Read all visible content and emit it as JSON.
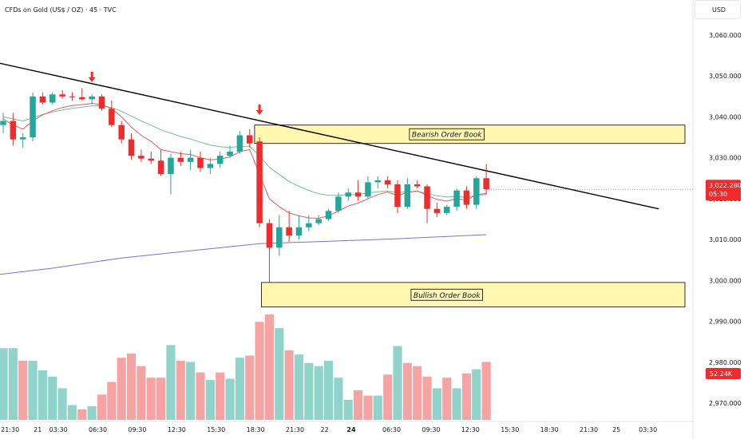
{
  "header": {
    "symbol_line": "CFDs on Gold (US$ / OZ) · 45 · TVC",
    "currency": "USD"
  },
  "colors": {
    "bull": "#26a69a",
    "bear": "#ef2b2b",
    "bull_volume": "#8fd3cb",
    "bear_volume": "#f5a3a3",
    "ema_fast": "#e8595a",
    "ema_mid": "#6fbf9a",
    "ema_slow": "#7b6fd6",
    "trendline": "#000000",
    "zone_fill": "#fff7b0",
    "price_tag": "#ef2b2b"
  },
  "chart_data": {
    "type": "candlestick",
    "price_axis": {
      "ticks": [
        "3,060.000",
        "3,050.000",
        "3,040.000",
        "3,030.000",
        "3,020.000",
        "3,010.000",
        "3,000.000",
        "2,990.000",
        "2,980.000",
        "2,970.000"
      ],
      "tick_values": [
        3060,
        3050,
        3040,
        3030,
        3020,
        3010,
        3000,
        2990,
        2980,
        2970
      ],
      "ylim": [
        2968,
        3066
      ]
    },
    "time_axis": {
      "labels": [
        {
          "text": "21:30",
          "index": 0.7
        },
        {
          "text": "21",
          "index": 3.5
        },
        {
          "text": "03:30",
          "index": 5.6
        },
        {
          "text": "06:30",
          "index": 9.6
        },
        {
          "text": "09:30",
          "index": 13.6
        },
        {
          "text": "12:30",
          "index": 17.6
        },
        {
          "text": "15:30",
          "index": 21.6
        },
        {
          "text": "18:30",
          "index": 25.6
        },
        {
          "text": "21:30",
          "index": 29.6
        },
        {
          "text": "22",
          "index": 32.6
        },
        {
          "text": "24",
          "index": 35.3,
          "bold": true
        },
        {
          "text": "06:30",
          "index": 39.4
        },
        {
          "text": "09:30",
          "index": 43.4
        },
        {
          "text": "12:30",
          "index": 47.4
        },
        {
          "text": "15:30",
          "index": 51.4
        },
        {
          "text": "18:30",
          "index": 55.4
        },
        {
          "text": "21:30",
          "index": 59.4
        },
        {
          "text": "25",
          "index": 62.2
        },
        {
          "text": "03:30",
          "index": 65.4
        }
      ]
    },
    "candles": [
      {
        "o": 3038.0,
        "h": 3041.0,
        "l": 3036.0,
        "c": 3039.0
      },
      {
        "o": 3039.0,
        "h": 3041.0,
        "l": 3033.0,
        "c": 3034.5
      },
      {
        "o": 3034.5,
        "h": 3036.0,
        "l": 3032.5,
        "c": 3035.0
      },
      {
        "o": 3035.0,
        "h": 3046.0,
        "l": 3034.0,
        "c": 3045.0
      },
      {
        "o": 3045.0,
        "h": 3046.0,
        "l": 3043.0,
        "c": 3043.5
      },
      {
        "o": 3043.5,
        "h": 3046.0,
        "l": 3043.0,
        "c": 3045.5
      },
      {
        "o": 3045.5,
        "h": 3046.5,
        "l": 3044.5,
        "c": 3045.0
      },
      {
        "o": 3045.0,
        "h": 3046.0,
        "l": 3044.0,
        "c": 3044.8
      },
      {
        "o": 3044.8,
        "h": 3047.0,
        "l": 3044.0,
        "c": 3044.3
      },
      {
        "o": 3044.3,
        "h": 3045.5,
        "l": 3043.0,
        "c": 3045.0
      },
      {
        "o": 3045.0,
        "h": 3045.5,
        "l": 3041.5,
        "c": 3042.0
      },
      {
        "o": 3042.0,
        "h": 3044.0,
        "l": 3037.5,
        "c": 3038.0
      },
      {
        "o": 3038.0,
        "h": 3039.0,
        "l": 3033.5,
        "c": 3034.5
      },
      {
        "o": 3034.5,
        "h": 3036.0,
        "l": 3029.5,
        "c": 3030.5
      },
      {
        "o": 3030.5,
        "h": 3032.0,
        "l": 3029.0,
        "c": 3029.8
      },
      {
        "o": 3029.8,
        "h": 3031.5,
        "l": 3028.5,
        "c": 3029.3
      },
      {
        "o": 3029.3,
        "h": 3032.0,
        "l": 3025.5,
        "c": 3026.0
      },
      {
        "o": 3026.0,
        "h": 3031.0,
        "l": 3021.0,
        "c": 3030.0
      },
      {
        "o": 3030.0,
        "h": 3031.5,
        "l": 3028.0,
        "c": 3029.0
      },
      {
        "o": 3029.0,
        "h": 3032.0,
        "l": 3027.0,
        "c": 3030.0
      },
      {
        "o": 3030.0,
        "h": 3031.5,
        "l": 3026.5,
        "c": 3027.5
      },
      {
        "o": 3027.5,
        "h": 3030.0,
        "l": 3026.0,
        "c": 3028.5
      },
      {
        "o": 3028.5,
        "h": 3031.5,
        "l": 3027.5,
        "c": 3030.5
      },
      {
        "o": 3030.5,
        "h": 3033.0,
        "l": 3030.0,
        "c": 3031.5
      },
      {
        "o": 3031.5,
        "h": 3036.5,
        "l": 3031.0,
        "c": 3035.5
      },
      {
        "o": 3035.5,
        "h": 3037.0,
        "l": 3032.5,
        "c": 3033.5
      },
      {
        "o": 3034.0,
        "h": 3035.0,
        "l": 3013.0,
        "c": 3014.0
      },
      {
        "o": 3014.0,
        "h": 3015.0,
        "l": 2999.5,
        "c": 3008.0
      },
      {
        "o": 3008.0,
        "h": 3016.0,
        "l": 3006.0,
        "c": 3013.0
      },
      {
        "o": 3013.0,
        "h": 3017.0,
        "l": 3009.5,
        "c": 3011.0
      },
      {
        "o": 3011.0,
        "h": 3016.0,
        "l": 3010.0,
        "c": 3013.0
      },
      {
        "o": 3013.0,
        "h": 3016.0,
        "l": 3012.0,
        "c": 3014.0
      },
      {
        "o": 3014.0,
        "h": 3016.0,
        "l": 3013.5,
        "c": 3015.0
      },
      {
        "o": 3015.0,
        "h": 3017.5,
        "l": 3014.5,
        "c": 3017.0
      },
      {
        "o": 3017.0,
        "h": 3021.5,
        "l": 3016.5,
        "c": 3020.5
      },
      {
        "o": 3020.5,
        "h": 3022.5,
        "l": 3019.5,
        "c": 3021.5
      },
      {
        "o": 3021.5,
        "h": 3024.5,
        "l": 3019.5,
        "c": 3020.5
      },
      {
        "o": 3020.5,
        "h": 3025.5,
        "l": 3020.0,
        "c": 3024.0
      },
      {
        "o": 3024.0,
        "h": 3025.5,
        "l": 3022.5,
        "c": 3024.5
      },
      {
        "o": 3024.5,
        "h": 3025.5,
        "l": 3022.5,
        "c": 3023.5
      },
      {
        "o": 3023.5,
        "h": 3024.5,
        "l": 3016.5,
        "c": 3018.0
      },
      {
        "o": 3018.0,
        "h": 3025.0,
        "l": 3017.5,
        "c": 3023.5
      },
      {
        "o": 3023.5,
        "h": 3024.5,
        "l": 3022.5,
        "c": 3023.0
      },
      {
        "o": 3023.0,
        "h": 3023.5,
        "l": 3014.0,
        "c": 3017.5
      },
      {
        "o": 3017.5,
        "h": 3019.0,
        "l": 3015.5,
        "c": 3016.5
      },
      {
        "o": 3016.5,
        "h": 3018.5,
        "l": 3016.0,
        "c": 3018.0
      },
      {
        "o": 3018.0,
        "h": 3022.5,
        "l": 3017.0,
        "c": 3022.0
      },
      {
        "o": 3022.0,
        "h": 3023.0,
        "l": 3017.5,
        "c": 3018.5
      },
      {
        "o": 3018.5,
        "h": 3025.5,
        "l": 3017.5,
        "c": 3025.0
      },
      {
        "o": 3025.0,
        "h": 3028.5,
        "l": 3021.0,
        "c": 3022.3
      }
    ],
    "volume": [
      {
        "v": 0.68,
        "bull": true
      },
      {
        "v": 0.68,
        "bull": true
      },
      {
        "v": 0.56,
        "bull": false
      },
      {
        "v": 0.56,
        "bull": true
      },
      {
        "v": 0.47,
        "bull": true
      },
      {
        "v": 0.41,
        "bull": true
      },
      {
        "v": 0.3,
        "bull": true
      },
      {
        "v": 0.14,
        "bull": true
      },
      {
        "v": 0.1,
        "bull": false
      },
      {
        "v": 0.13,
        "bull": true
      },
      {
        "v": 0.24,
        "bull": false
      },
      {
        "v": 0.36,
        "bull": false
      },
      {
        "v": 0.59,
        "bull": false
      },
      {
        "v": 0.63,
        "bull": false
      },
      {
        "v": 0.51,
        "bull": false
      },
      {
        "v": 0.4,
        "bull": false
      },
      {
        "v": 0.4,
        "bull": false
      },
      {
        "v": 0.71,
        "bull": true
      },
      {
        "v": 0.56,
        "bull": false
      },
      {
        "v": 0.55,
        "bull": true
      },
      {
        "v": 0.45,
        "bull": false
      },
      {
        "v": 0.38,
        "bull": true
      },
      {
        "v": 0.45,
        "bull": false
      },
      {
        "v": 0.39,
        "bull": true
      },
      {
        "v": 0.59,
        "bull": true
      },
      {
        "v": 0.61,
        "bull": false
      },
      {
        "v": 0.93,
        "bull": false
      },
      {
        "v": 1.0,
        "bull": false
      },
      {
        "v": 0.87,
        "bull": true
      },
      {
        "v": 0.66,
        "bull": false
      },
      {
        "v": 0.62,
        "bull": true
      },
      {
        "v": 0.54,
        "bull": true
      },
      {
        "v": 0.51,
        "bull": true
      },
      {
        "v": 0.56,
        "bull": true
      },
      {
        "v": 0.4,
        "bull": true
      },
      {
        "v": 0.19,
        "bull": true
      },
      {
        "v": 0.28,
        "bull": false
      },
      {
        "v": 0.23,
        "bull": false
      },
      {
        "v": 0.23,
        "bull": true
      },
      {
        "v": 0.43,
        "bull": false
      },
      {
        "v": 0.7,
        "bull": true
      },
      {
        "v": 0.54,
        "bull": false
      },
      {
        "v": 0.51,
        "bull": false
      },
      {
        "v": 0.41,
        "bull": false
      },
      {
        "v": 0.3,
        "bull": true
      },
      {
        "v": 0.4,
        "bull": false
      },
      {
        "v": 0.3,
        "bull": true
      },
      {
        "v": 0.44,
        "bull": false
      },
      {
        "v": 0.48,
        "bull": true
      },
      {
        "v": 0.55,
        "bull": false
      }
    ],
    "ema_fast": [
      3039.5,
      3038.0,
      3037.0,
      3039.0,
      3040.5,
      3041.5,
      3042.3,
      3042.8,
      3043.0,
      3043.3,
      3043.0,
      3042.0,
      3040.0,
      3037.5,
      3035.5,
      3034.0,
      3032.0,
      3031.5,
      3031.0,
      3030.8,
      3030.0,
      3029.5,
      3029.7,
      3030.2,
      3031.5,
      3032.0,
      3026.0,
      3020.0,
      3018.0,
      3016.5,
      3015.8,
      3015.3,
      3015.2,
      3015.8,
      3017.0,
      3018.2,
      3018.9,
      3020.0,
      3021.0,
      3021.6,
      3020.8,
      3021.5,
      3021.9,
      3020.8,
      3019.8,
      3019.4,
      3020.0,
      3019.6,
      3021.0,
      3021.3
    ],
    "ema_mid": [
      3040.0,
      3039.5,
      3039.0,
      3039.8,
      3040.6,
      3041.2,
      3041.7,
      3042.1,
      3042.4,
      3042.7,
      3042.7,
      3042.3,
      3041.4,
      3040.2,
      3039.0,
      3038.0,
      3036.8,
      3036.0,
      3035.2,
      3034.6,
      3033.8,
      3033.1,
      3032.7,
      3032.5,
      3032.8,
      3032.8,
      3030.5,
      3027.7,
      3025.9,
      3024.2,
      3023.0,
      3022.0,
      3021.2,
      3020.8,
      3020.8,
      3021.0,
      3021.0,
      3021.4,
      3021.7,
      3021.9,
      3021.5,
      3021.7,
      3021.8,
      3021.3,
      3020.7,
      3020.4,
      3020.5,
      3020.3,
      3020.8,
      3021.0
    ],
    "ema_slow_points": [
      [
        -2,
        3001.0
      ],
      [
        5,
        3003.0
      ],
      [
        12,
        3005.5
      ],
      [
        20,
        3007.5
      ],
      [
        26,
        3009.0
      ],
      [
        32,
        3009.5
      ],
      [
        40,
        3010.2
      ],
      [
        49,
        3011.2
      ]
    ],
    "trendline": {
      "from": [
        -2,
        3054.0
      ],
      "to": [
        66.5,
        3017.5
      ]
    },
    "zones": [
      {
        "label": "Bearish Order Book",
        "top": 3038.0,
        "bottom": 3033.5,
        "from_index": 25.5,
        "label_index": 45
      },
      {
        "label": "Bullish Order Book",
        "top": 2999.5,
        "bottom": 2993.5,
        "from_index": 26.2,
        "label_index": 45
      }
    ],
    "arrows": [
      {
        "index": 9,
        "price": 3048.5
      },
      {
        "index": 26,
        "price": 3040.5
      }
    ],
    "last_price": {
      "value": 3022.28,
      "label": "3,022.280",
      "countdown": "05:30"
    },
    "last_volume": {
      "label": "52.24K"
    }
  }
}
